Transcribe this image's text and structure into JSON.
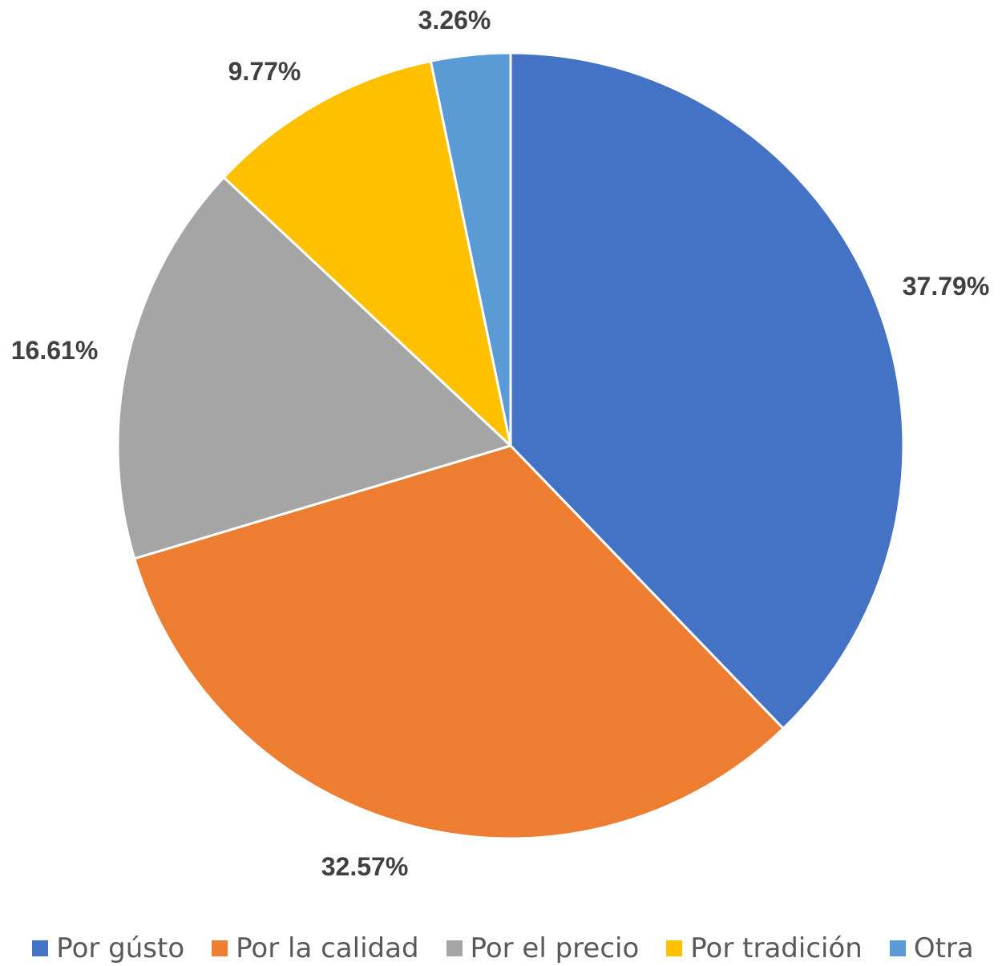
{
  "chart_data": {
    "type": "pie",
    "title": "",
    "categories": [
      "Por gústo",
      "Por la calidad",
      "Por el precio",
      "Por tradición",
      "Otra"
    ],
    "values": [
      37.79,
      32.57,
      16.61,
      9.77,
      3.26
    ],
    "data_labels": [
      "37.79%",
      "32.57%",
      "16.61%",
      "9.77%",
      "3.26%"
    ],
    "colors": [
      "#4472C4",
      "#ED7D31",
      "#A5A5A5",
      "#FFC000",
      "#5B9BD5"
    ],
    "start_angle_deg": 0,
    "direction": "clockwise",
    "legend_position": "bottom"
  }
}
